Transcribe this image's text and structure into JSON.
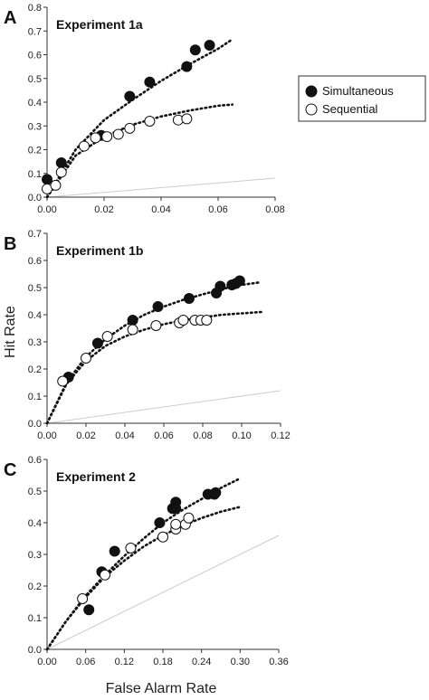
{
  "figure": {
    "ylabel": "Hit Rate",
    "xlabel": "False Alarm Rate",
    "legend": {
      "placement": "right",
      "entries": [
        {
          "name": "Simultaneous",
          "marker": "filled"
        },
        {
          "name": "Sequential",
          "marker": "open"
        }
      ]
    }
  },
  "colors": {
    "simultaneous": "#111111",
    "sequential_fill": "#ffffff",
    "chance_line": "#cccccc",
    "axis": "#333333"
  },
  "chart_data": [
    {
      "type": "scatter",
      "panel_letter": "A",
      "title": "Experiment 1a",
      "xlim": [
        0,
        0.08
      ],
      "ylim": [
        0,
        0.8
      ],
      "xticks": [
        "0.00",
        "0.02",
        "0.04",
        "0.06",
        "0.08"
      ],
      "yticks": [
        "0.0",
        "0.1",
        "0.2",
        "0.3",
        "0.4",
        "0.5",
        "0.6",
        "0.7",
        "0.8"
      ],
      "series": [
        {
          "name": "Simultaneous",
          "points": [
            [
              0.0,
              0.075
            ],
            [
              0.005,
              0.145
            ],
            [
              0.019,
              0.26
            ],
            [
              0.029,
              0.425
            ],
            [
              0.036,
              0.485
            ],
            [
              0.049,
              0.55
            ],
            [
              0.052,
              0.62
            ],
            [
              0.057,
              0.64
            ]
          ],
          "fit": [
            [
              0.0,
              0.0
            ],
            [
              0.01,
              0.2
            ],
            [
              0.02,
              0.325
            ],
            [
              0.03,
              0.41
            ],
            [
              0.04,
              0.49
            ],
            [
              0.05,
              0.56
            ],
            [
              0.06,
              0.625
            ],
            [
              0.065,
              0.665
            ]
          ]
        },
        {
          "name": "Sequential",
          "points": [
            [
              0.0,
              0.035
            ],
            [
              0.003,
              0.05
            ],
            [
              0.005,
              0.105
            ],
            [
              0.013,
              0.215
            ],
            [
              0.017,
              0.25
            ],
            [
              0.021,
              0.255
            ],
            [
              0.025,
              0.265
            ],
            [
              0.029,
              0.29
            ],
            [
              0.036,
              0.32
            ],
            [
              0.046,
              0.325
            ],
            [
              0.049,
              0.33
            ]
          ],
          "fit": [
            [
              0.0,
              0.0
            ],
            [
              0.01,
              0.175
            ],
            [
              0.02,
              0.255
            ],
            [
              0.03,
              0.305
            ],
            [
              0.04,
              0.34
            ],
            [
              0.05,
              0.365
            ],
            [
              0.06,
              0.385
            ],
            [
              0.065,
              0.39
            ]
          ]
        }
      ],
      "chance_line": [
        [
          0,
          0
        ],
        [
          0.08,
          0.08
        ]
      ]
    },
    {
      "type": "scatter",
      "panel_letter": "B",
      "title": "Experiment 1b",
      "xlim": [
        0,
        0.12
      ],
      "ylim": [
        0,
        0.7
      ],
      "xticks": [
        "0.00",
        "0.02",
        "0.04",
        "0.06",
        "0.08",
        "0.10",
        "0.12"
      ],
      "yticks": [
        "0.0",
        "0.1",
        "0.2",
        "0.3",
        "0.4",
        "0.5",
        "0.6",
        "0.7"
      ],
      "series": [
        {
          "name": "Simultaneous",
          "points": [
            [
              0.011,
              0.17
            ],
            [
              0.026,
              0.295
            ],
            [
              0.044,
              0.38
            ],
            [
              0.057,
              0.43
            ],
            [
              0.073,
              0.46
            ],
            [
              0.087,
              0.48
            ],
            [
              0.089,
              0.505
            ],
            [
              0.095,
              0.51
            ],
            [
              0.097,
              0.515
            ],
            [
              0.099,
              0.525
            ]
          ],
          "fit": [
            [
              0.0,
              0.0
            ],
            [
              0.01,
              0.15
            ],
            [
              0.02,
              0.245
            ],
            [
              0.03,
              0.31
            ],
            [
              0.04,
              0.36
            ],
            [
              0.05,
              0.4
            ],
            [
              0.06,
              0.43
            ],
            [
              0.07,
              0.455
            ],
            [
              0.08,
              0.475
            ],
            [
              0.09,
              0.495
            ],
            [
              0.1,
              0.51
            ],
            [
              0.11,
              0.52
            ]
          ]
        },
        {
          "name": "Sequential",
          "points": [
            [
              0.008,
              0.155
            ],
            [
              0.02,
              0.24
            ],
            [
              0.031,
              0.32
            ],
            [
              0.044,
              0.345
            ],
            [
              0.056,
              0.36
            ],
            [
              0.068,
              0.37
            ],
            [
              0.07,
              0.38
            ],
            [
              0.076,
              0.38
            ],
            [
              0.079,
              0.38
            ],
            [
              0.082,
              0.38
            ]
          ],
          "fit": [
            [
              0.0,
              0.0
            ],
            [
              0.01,
              0.145
            ],
            [
              0.02,
              0.23
            ],
            [
              0.03,
              0.285
            ],
            [
              0.04,
              0.32
            ],
            [
              0.05,
              0.345
            ],
            [
              0.06,
              0.365
            ],
            [
              0.07,
              0.38
            ],
            [
              0.08,
              0.39
            ],
            [
              0.09,
              0.4
            ],
            [
              0.1,
              0.405
            ],
            [
              0.11,
              0.41
            ]
          ]
        }
      ],
      "chance_line": [
        [
          0,
          0
        ],
        [
          0.12,
          0.12
        ]
      ]
    },
    {
      "type": "scatter",
      "panel_letter": "C",
      "title": "Experiment 2",
      "xlim": [
        0,
        0.36
      ],
      "ylim": [
        0,
        0.6
      ],
      "xticks": [
        "0.00",
        "0.06",
        "0.12",
        "0.18",
        "0.24",
        "0.30",
        "0.36"
      ],
      "yticks": [
        "0.0",
        "0.1",
        "0.2",
        "0.3",
        "0.4",
        "0.5",
        "0.6"
      ],
      "series": [
        {
          "name": "Simultaneous",
          "points": [
            [
              0.065,
              0.125
            ],
            [
              0.085,
              0.245
            ],
            [
              0.105,
              0.31
            ],
            [
              0.175,
              0.4
            ],
            [
              0.195,
              0.445
            ],
            [
              0.2,
              0.465
            ],
            [
              0.2,
              0.445
            ],
            [
              0.25,
              0.49
            ],
            [
              0.26,
              0.49
            ],
            [
              0.262,
              0.495
            ]
          ],
          "fit": [
            [
              0.0,
              0.0
            ],
            [
              0.03,
              0.09
            ],
            [
              0.06,
              0.17
            ],
            [
              0.09,
              0.235
            ],
            [
              0.12,
              0.295
            ],
            [
              0.15,
              0.35
            ],
            [
              0.18,
              0.4
            ],
            [
              0.21,
              0.44
            ],
            [
              0.24,
              0.475
            ],
            [
              0.27,
              0.51
            ],
            [
              0.3,
              0.54
            ]
          ]
        },
        {
          "name": "Sequential",
          "points": [
            [
              0.055,
              0.16
            ],
            [
              0.09,
              0.235
            ],
            [
              0.13,
              0.32
            ],
            [
              0.18,
              0.355
            ],
            [
              0.2,
              0.38
            ],
            [
              0.2,
              0.395
            ],
            [
              0.215,
              0.395
            ],
            [
              0.22,
              0.415
            ]
          ],
          "fit": [
            [
              0.0,
              0.0
            ],
            [
              0.03,
              0.09
            ],
            [
              0.06,
              0.165
            ],
            [
              0.09,
              0.23
            ],
            [
              0.12,
              0.28
            ],
            [
              0.15,
              0.325
            ],
            [
              0.18,
              0.36
            ],
            [
              0.21,
              0.39
            ],
            [
              0.24,
              0.415
            ],
            [
              0.27,
              0.435
            ],
            [
              0.3,
              0.45
            ]
          ]
        }
      ],
      "chance_line": [
        [
          0,
          0
        ],
        [
          0.36,
          0.36
        ]
      ]
    }
  ]
}
